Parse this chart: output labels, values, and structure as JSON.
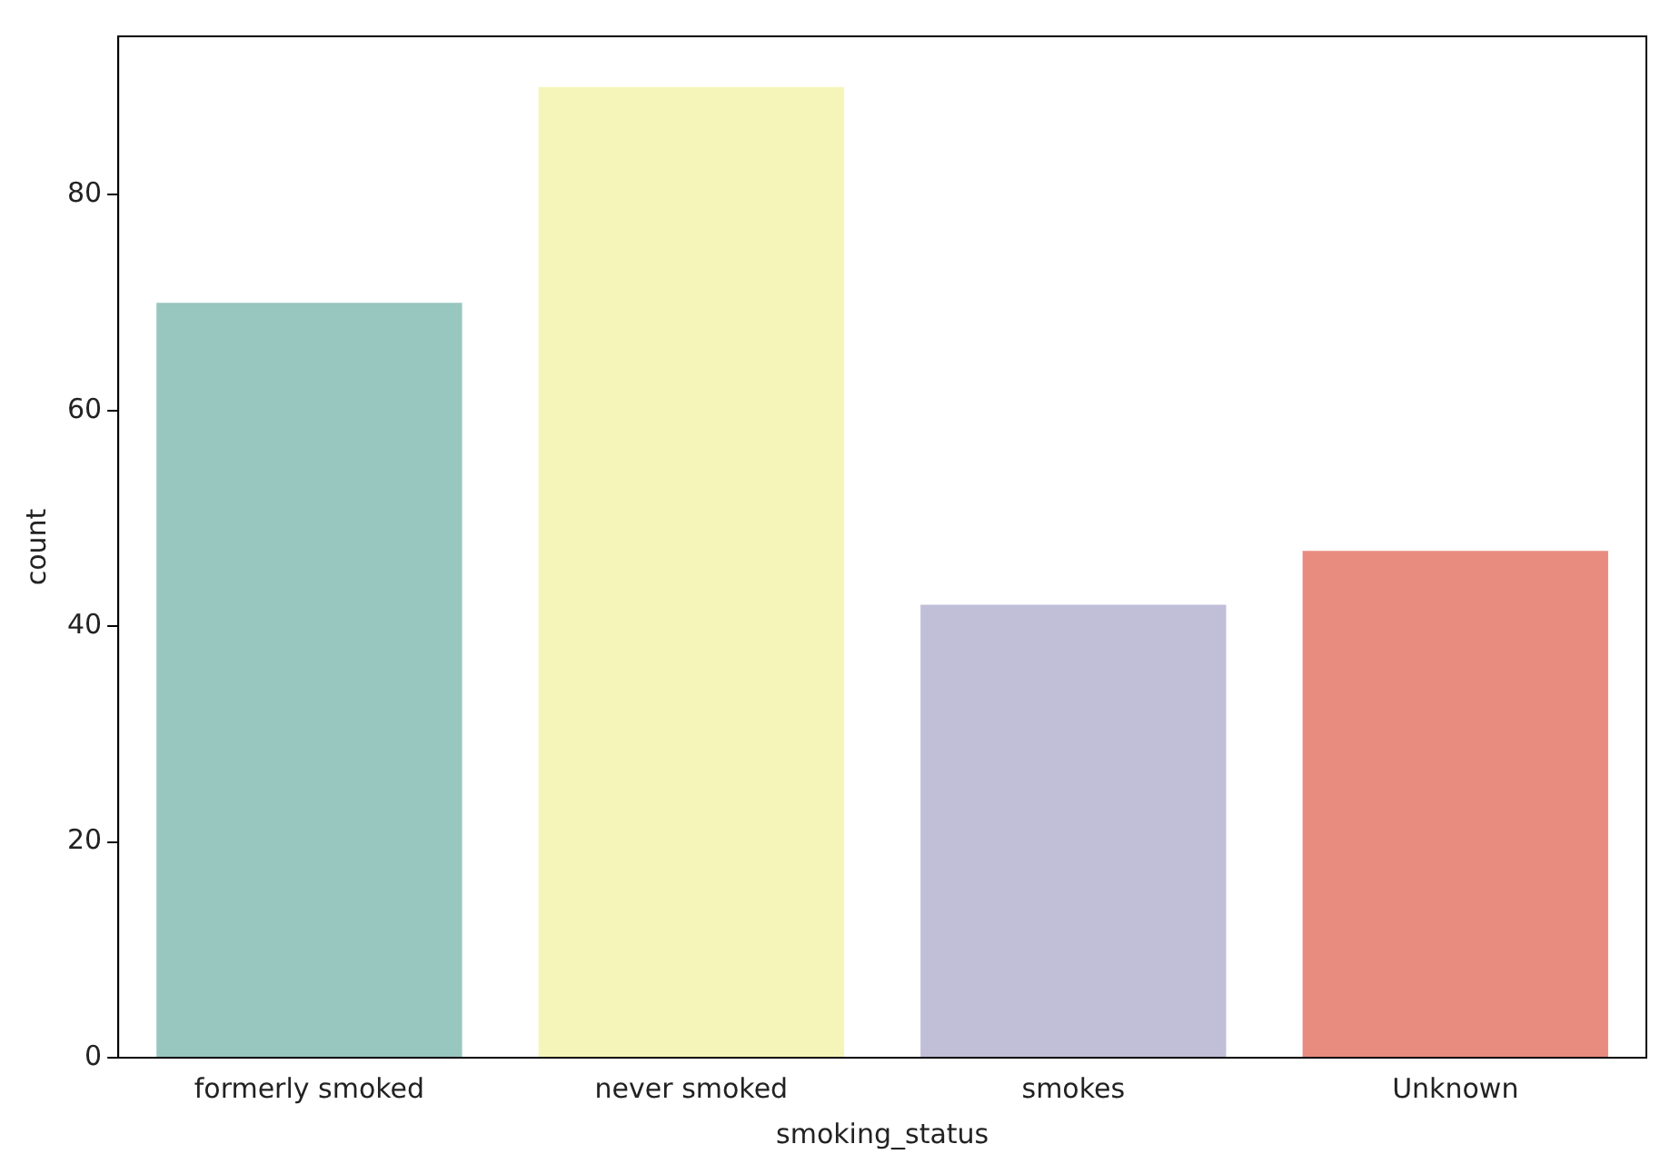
{
  "chart_data": {
    "type": "bar",
    "xlabel": "smoking_status",
    "ylabel": "count",
    "categories": [
      "formerly smoked",
      "never smoked",
      "smokes",
      "Unknown"
    ],
    "values": [
      70,
      90,
      42,
      47
    ],
    "colors": [
      "#97c7bf",
      "#f5f5b9",
      "#c1bed8",
      "#e98c80"
    ],
    "ylim": [
      0,
      94.7
    ],
    "yticks": [
      0,
      20,
      40,
      60,
      80
    ],
    "grid": false
  }
}
